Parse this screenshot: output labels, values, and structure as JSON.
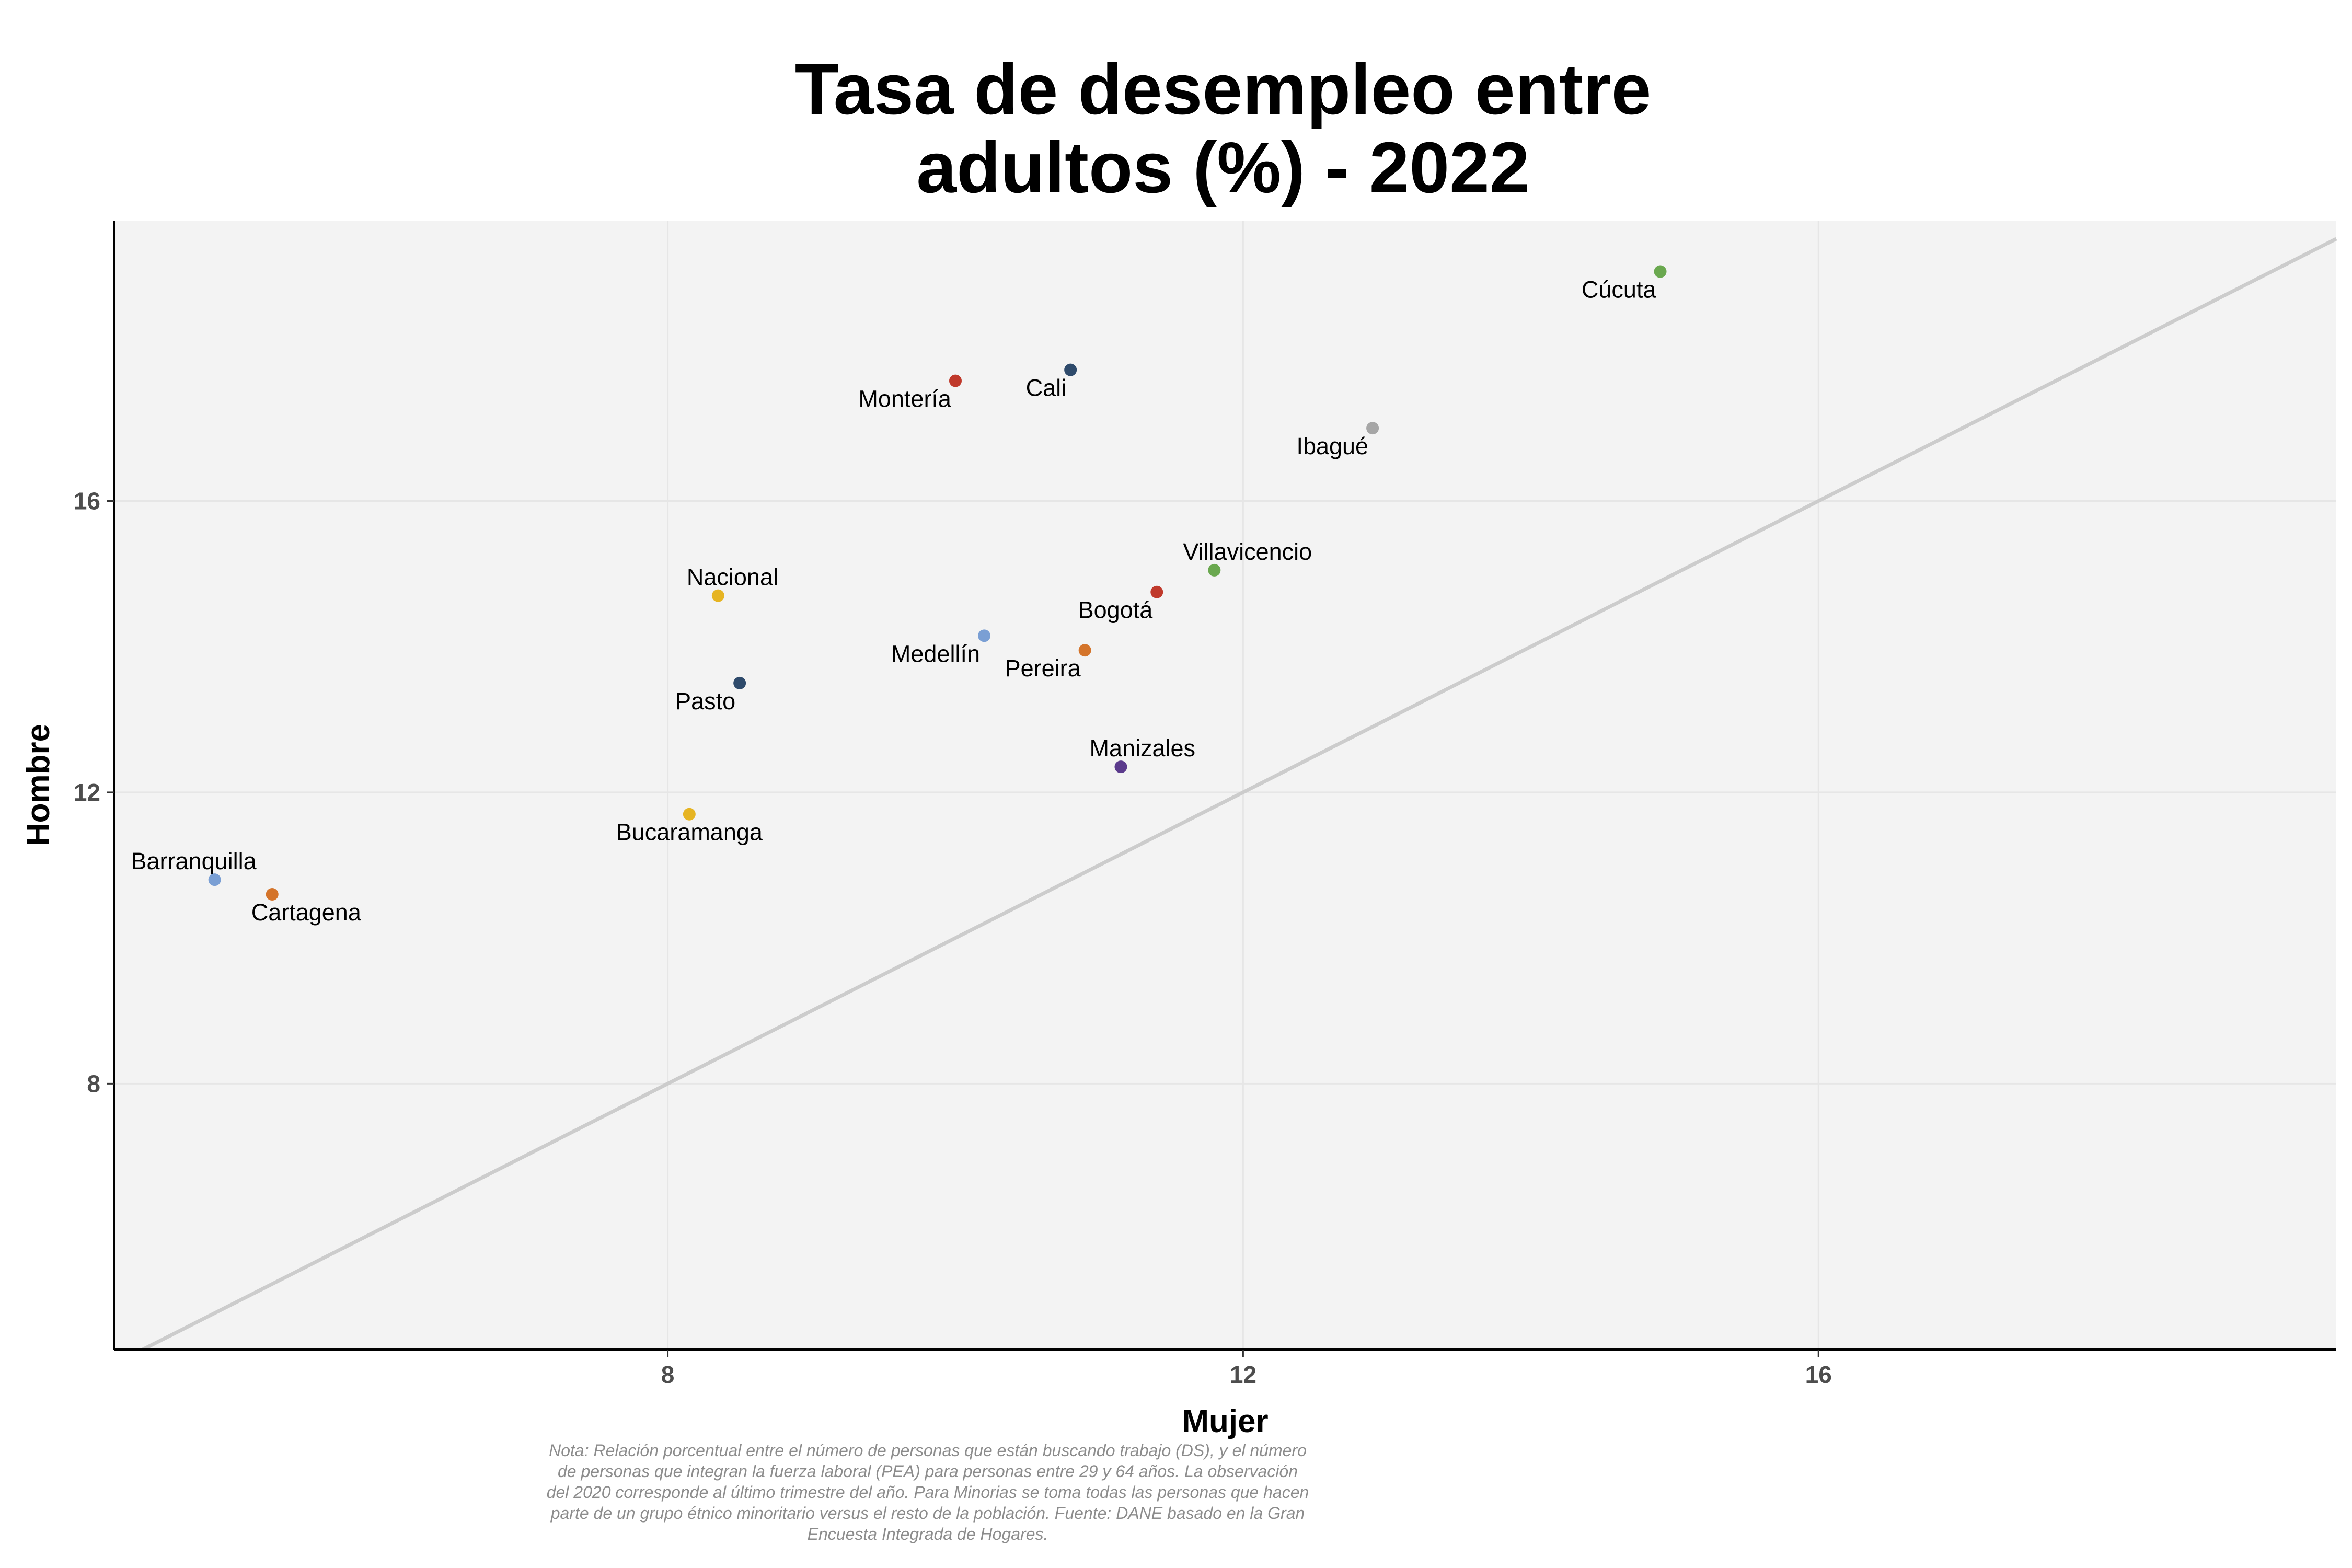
{
  "chart_data": {
    "type": "scatter",
    "title": [
      "Tasa de desempleo entre",
      "adultos (%) - 2022"
    ],
    "xlabel": "Mujer",
    "ylabel": "Hombre",
    "xlim": [
      4.15,
      19.6
    ],
    "ylim": [
      4.35,
      19.85
    ],
    "xticks": [
      8,
      12,
      16
    ],
    "yticks": [
      8,
      12,
      16
    ],
    "grid": true,
    "reference_line": "y = x",
    "points": [
      {
        "label": "Cúcuta",
        "x": 14.9,
        "y": 19.15,
        "color": "#6aa84f",
        "label_pos": "below-left"
      },
      {
        "label": "Cali",
        "x": 10.8,
        "y": 17.8,
        "color": "#2e4a6b",
        "label_pos": "below-left"
      },
      {
        "label": "Montería",
        "x": 10.0,
        "y": 17.65,
        "color": "#c0392b",
        "label_pos": "below-left"
      },
      {
        "label": "Ibagué",
        "x": 12.9,
        "y": 17.0,
        "color": "#a6a6a6",
        "label_pos": "below-left"
      },
      {
        "label": "Villavicencio",
        "x": 11.8,
        "y": 15.05,
        "color": "#6aa84f",
        "label_pos": "above-right"
      },
      {
        "label": "Bogotá",
        "x": 11.4,
        "y": 14.75,
        "color": "#c0392b",
        "label_pos": "below-left"
      },
      {
        "label": "Nacional",
        "x": 8.35,
        "y": 14.7,
        "color": "#e6b422",
        "label_pos": "above-right"
      },
      {
        "label": "Medellín",
        "x": 10.2,
        "y": 14.15,
        "color": "#7a9fd4",
        "label_pos": "below-left"
      },
      {
        "label": "Pereira",
        "x": 10.9,
        "y": 13.95,
        "color": "#d4742a",
        "label_pos": "below-left"
      },
      {
        "label": "Pasto",
        "x": 8.5,
        "y": 13.5,
        "color": "#2e4a6b",
        "label_pos": "below-left"
      },
      {
        "label": "Manizales",
        "x": 11.15,
        "y": 12.35,
        "color": "#5b3a8c",
        "label_pos": "above-right"
      },
      {
        "label": "Bucaramanga",
        "x": 8.15,
        "y": 11.7,
        "color": "#e6b422",
        "label_pos": "below"
      },
      {
        "label": "Barranquilla",
        "x": 4.85,
        "y": 10.8,
        "color": "#7a9fd4",
        "label_pos": "above-left"
      },
      {
        "label": "Cartagena",
        "x": 5.25,
        "y": 10.6,
        "color": "#d4742a",
        "label_pos": "below-right"
      }
    ],
    "note": [
      "Nota: Relación porcentual entre el número de personas que están buscando trabajo (DS), y el número",
      "de personas que integran la fuerza laboral (PEA) para personas entre 29 y 64 años. La observación",
      "del 2020 corresponde al último trimestre del año. Para Minorias se toma todas las personas que hacen",
      "parte de un grupo étnico minoritario versus el resto de la población. Fuente: DANE basado en la Gran",
      "Encuesta Integrada de Hogares."
    ]
  },
  "style": {
    "panel_bg": "#f3f3f3",
    "grid_color": "#e6e6e6",
    "ref_line_color": "#cccccc",
    "axis_color": "#000000"
  }
}
